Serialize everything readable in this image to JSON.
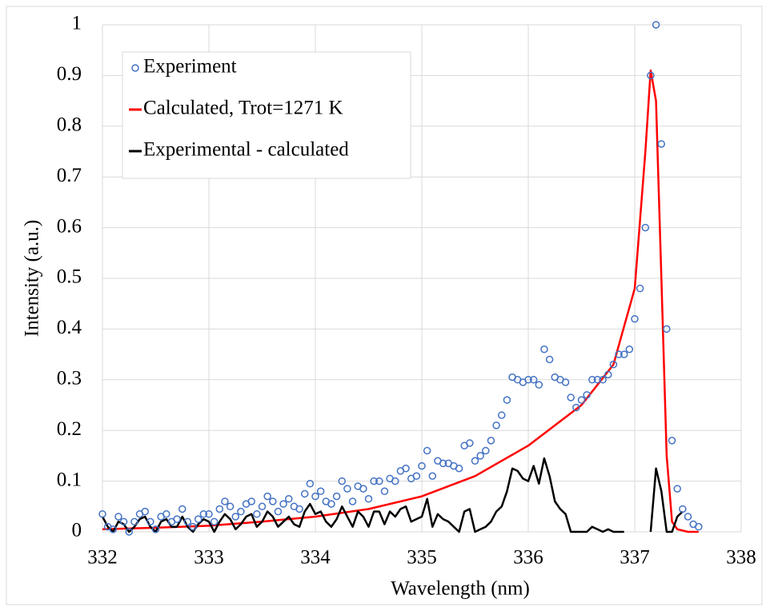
{
  "chart_data": {
    "type": "scatter",
    "xlabel": "Wavelength (nm)",
    "ylabel": "Intensity (a.u.)",
    "xlim": [
      332,
      338
    ],
    "xticks": [
      332,
      333,
      334,
      335,
      336,
      337,
      338
    ],
    "ylim": [
      0,
      1
    ],
    "yticks": [
      0,
      0.1,
      0.2,
      0.3,
      0.4,
      0.5,
      0.6,
      0.7,
      0.8,
      0.9,
      1
    ],
    "grid": true,
    "legend": "upper left",
    "series": [
      {
        "name": "Experiment",
        "color": "#4472c4",
        "mode": "markers",
        "x": [
          332.0,
          332.05,
          332.1,
          332.15,
          332.2,
          332.25,
          332.3,
          332.35,
          332.4,
          332.45,
          332.5,
          332.55,
          332.6,
          332.65,
          332.7,
          332.75,
          332.8,
          332.85,
          332.9,
          332.95,
          333.0,
          333.05,
          333.1,
          333.15,
          333.2,
          333.25,
          333.3,
          333.35,
          333.4,
          333.45,
          333.5,
          333.55,
          333.6,
          333.65,
          333.7,
          333.75,
          333.8,
          333.85,
          333.9,
          333.95,
          334.0,
          334.05,
          334.1,
          334.15,
          334.2,
          334.25,
          334.3,
          334.35,
          334.4,
          334.45,
          334.5,
          334.55,
          334.6,
          334.65,
          334.7,
          334.75,
          334.8,
          334.85,
          334.9,
          334.95,
          335.0,
          335.05,
          335.1,
          335.15,
          335.2,
          335.25,
          335.3,
          335.35,
          335.4,
          335.45,
          335.5,
          335.55,
          335.6,
          335.65,
          335.7,
          335.75,
          335.8,
          335.85,
          335.9,
          335.95,
          336.0,
          336.05,
          336.1,
          336.15,
          336.2,
          336.25,
          336.3,
          336.35,
          336.4,
          336.45,
          336.5,
          336.55,
          336.6,
          336.65,
          336.7,
          336.75,
          336.8,
          336.85,
          336.9,
          336.95,
          337.0,
          337.05,
          337.1,
          337.15,
          337.2,
          337.25,
          337.3,
          337.35,
          337.4,
          337.45,
          337.5,
          337.55,
          337.6
        ],
        "values": [
          0.035,
          0.01,
          0.005,
          0.03,
          0.02,
          0.0,
          0.02,
          0.035,
          0.04,
          0.02,
          0.005,
          0.03,
          0.035,
          0.02,
          0.025,
          0.045,
          0.02,
          0.01,
          0.025,
          0.035,
          0.035,
          0.02,
          0.045,
          0.06,
          0.05,
          0.03,
          0.04,
          0.055,
          0.06,
          0.035,
          0.05,
          0.07,
          0.06,
          0.04,
          0.055,
          0.065,
          0.05,
          0.045,
          0.075,
          0.095,
          0.07,
          0.08,
          0.06,
          0.055,
          0.07,
          0.1,
          0.085,
          0.06,
          0.09,
          0.085,
          0.065,
          0.1,
          0.1,
          0.08,
          0.105,
          0.1,
          0.12,
          0.125,
          0.105,
          0.11,
          0.13,
          0.16,
          0.11,
          0.14,
          0.135,
          0.135,
          0.13,
          0.125,
          0.17,
          0.175,
          0.14,
          0.15,
          0.16,
          0.18,
          0.21,
          0.23,
          0.26,
          0.305,
          0.3,
          0.295,
          0.3,
          0.3,
          0.29,
          0.36,
          0.34,
          0.305,
          0.3,
          0.295,
          0.265,
          0.245,
          0.26,
          0.27,
          0.3,
          0.3,
          0.3,
          0.31,
          0.33,
          0.35,
          0.35,
          0.36,
          0.42,
          0.48,
          0.6,
          0.9,
          1.0,
          0.765,
          0.4,
          0.18,
          0.085,
          0.045,
          0.03,
          0.015,
          0.01
        ]
      },
      {
        "name": "Calculated, Trot=1271 K",
        "color": "#ff0000",
        "mode": "lines",
        "x": [
          332.0,
          332.5,
          333.0,
          333.5,
          334.0,
          334.5,
          335.0,
          335.5,
          336.0,
          336.5,
          336.8,
          337.0,
          337.1,
          337.15,
          337.2,
          337.25,
          337.3,
          337.35,
          337.4,
          337.5,
          337.6
        ],
        "values": [
          0.005,
          0.008,
          0.012,
          0.02,
          0.03,
          0.045,
          0.07,
          0.11,
          0.17,
          0.25,
          0.33,
          0.48,
          0.75,
          0.91,
          0.85,
          0.5,
          0.15,
          0.02,
          0.005,
          0,
          0
        ]
      },
      {
        "name": "Experimental - calculated",
        "color": "#000000",
        "mode": "lines",
        "x": [
          332.0,
          332.05,
          332.1,
          332.15,
          332.2,
          332.25,
          332.3,
          332.35,
          332.4,
          332.45,
          332.5,
          332.55,
          332.6,
          332.65,
          332.7,
          332.75,
          332.8,
          332.85,
          332.9,
          332.95,
          333.0,
          333.05,
          333.1,
          333.15,
          333.2,
          333.25,
          333.3,
          333.35,
          333.4,
          333.45,
          333.5,
          333.55,
          333.6,
          333.65,
          333.7,
          333.75,
          333.8,
          333.85,
          333.9,
          333.95,
          334.0,
          334.05,
          334.1,
          334.15,
          334.2,
          334.25,
          334.3,
          334.35,
          334.4,
          334.45,
          334.5,
          334.55,
          334.6,
          334.65,
          334.7,
          334.75,
          334.8,
          334.85,
          334.9,
          334.95,
          335.0,
          335.05,
          335.1,
          335.15,
          335.2,
          335.25,
          335.3,
          335.35,
          335.4,
          335.45,
          335.5,
          335.55,
          335.6,
          335.65,
          335.7,
          335.75,
          335.8,
          335.85,
          335.9,
          335.95,
          336.0,
          336.05,
          336.1,
          336.15,
          336.2,
          336.25,
          336.3,
          336.35,
          336.4,
          336.45,
          336.5,
          336.55,
          336.6,
          336.65,
          336.7,
          336.75,
          336.8,
          336.85,
          336.9,
          336.95,
          337.0,
          337.05,
          337.1,
          337.15,
          337.2,
          337.25,
          337.3,
          337.35,
          337.4,
          337.45,
          337.5,
          337.55,
          337.6
        ],
        "values": [
          0.03,
          0.01,
          0.0,
          0.02,
          0.015,
          0.0,
          0.01,
          0.025,
          0.03,
          0.01,
          0.0,
          0.02,
          0.025,
          0.01,
          0.01,
          0.03,
          0.01,
          0.0,
          0.015,
          0.025,
          0.02,
          0.0,
          0.02,
          0.035,
          0.025,
          0.005,
          0.015,
          0.03,
          0.035,
          0.01,
          0.02,
          0.04,
          0.03,
          0.01,
          0.02,
          0.03,
          0.015,
          0.01,
          0.04,
          0.055,
          0.035,
          0.04,
          0.02,
          0.01,
          0.025,
          0.05,
          0.03,
          0.01,
          0.04,
          0.03,
          0.01,
          0.04,
          0.04,
          0.015,
          0.04,
          0.03,
          0.045,
          0.05,
          0.02,
          0.025,
          0.03,
          0.065,
          0.01,
          0.035,
          0.025,
          0.02,
          0.01,
          0.0,
          0.04,
          0.045,
          0.0,
          0.005,
          0.01,
          0.02,
          0.04,
          0.05,
          0.08,
          0.125,
          0.12,
          0.105,
          0.1,
          0.13,
          0.095,
          0.145,
          0.11,
          0.06,
          0.045,
          0.035,
          0.0,
          0.0,
          0.0,
          0.0,
          0.01,
          0.005,
          0.0,
          0.005,
          0.0,
          0.0,
          0.0,
          null,
          null,
          null,
          null,
          0,
          0.125,
          0.08,
          0.0,
          0.0,
          0.03,
          0.04,
          null,
          null,
          null
        ]
      }
    ]
  }
}
